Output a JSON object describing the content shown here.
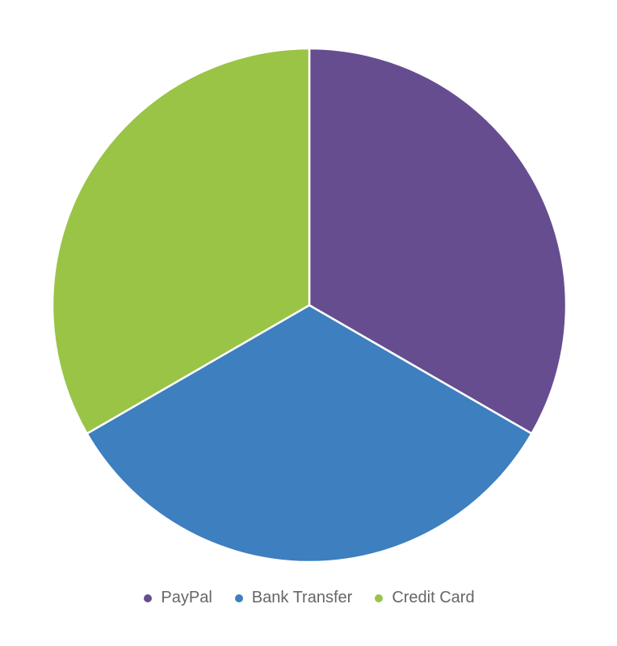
{
  "chart_data": {
    "type": "pie",
    "categories": [
      "PayPal",
      "Bank Transfer",
      "Credit Card"
    ],
    "values": [
      1,
      1,
      1
    ],
    "colors": [
      "#664d8f",
      "#3d7fbf",
      "#99c446"
    ],
    "legend_position": "bottom",
    "title": ""
  }
}
